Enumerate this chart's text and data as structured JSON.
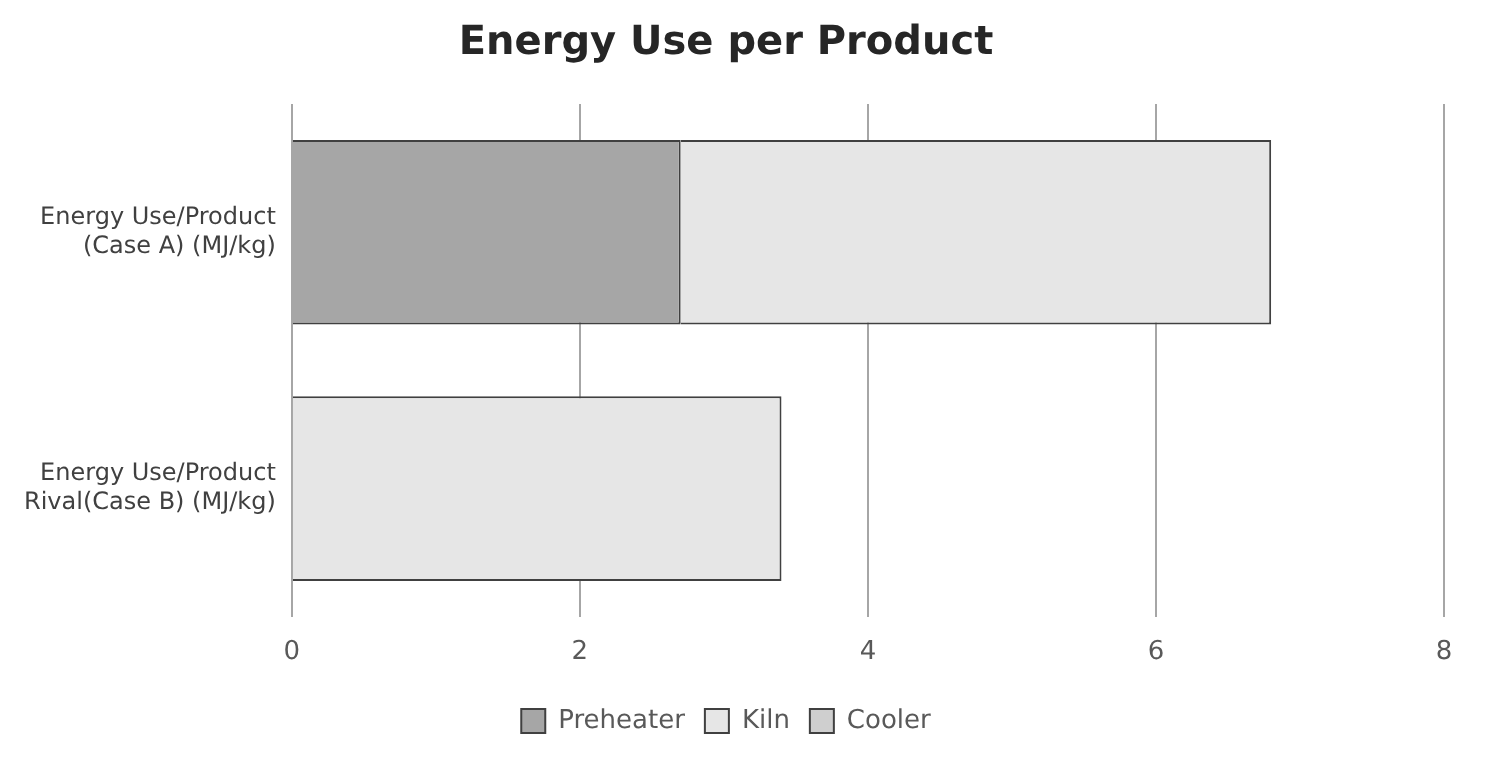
{
  "chart_data": {
    "type": "bar",
    "title": "Energy Use per Product",
    "orientation": "horizontal",
    "stacked": true,
    "categories": [
      "Energy Use/Product\n(Case A) (MJ/kg)",
      "Energy Use/Product\nRival(Case B) (MJ/kg)"
    ],
    "series": [
      {
        "name": "Preheater",
        "color": "#a6a6a6",
        "values": [
          2.7,
          0
        ]
      },
      {
        "name": "Kiln",
        "color": "#e6e6e6",
        "values": [
          4.1,
          3.4
        ]
      },
      {
        "name": "Cooler",
        "color": "#cfcfcf",
        "values": [
          0,
          0
        ]
      }
    ],
    "xlim": [
      0,
      8
    ],
    "xticks": [
      0,
      2,
      4,
      6,
      8
    ],
    "grid": "x",
    "legend": "bottom"
  }
}
